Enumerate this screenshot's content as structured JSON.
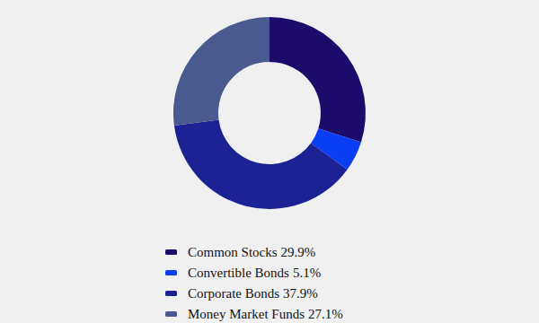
{
  "chart_data": {
    "type": "donut",
    "categories": [
      "Common Stocks",
      "Convertible Bonds",
      "Corporate Bonds",
      "Money Market Funds"
    ],
    "values": [
      29.9,
      5.1,
      37.9,
      27.1
    ],
    "value_labels": [
      "29.9%",
      "5.1%",
      "37.9%",
      "27.1%"
    ],
    "colors": [
      "#1d0b6c",
      "#0a3ef5",
      "#1b2394",
      "#485a8f"
    ],
    "legend": "bottom"
  }
}
